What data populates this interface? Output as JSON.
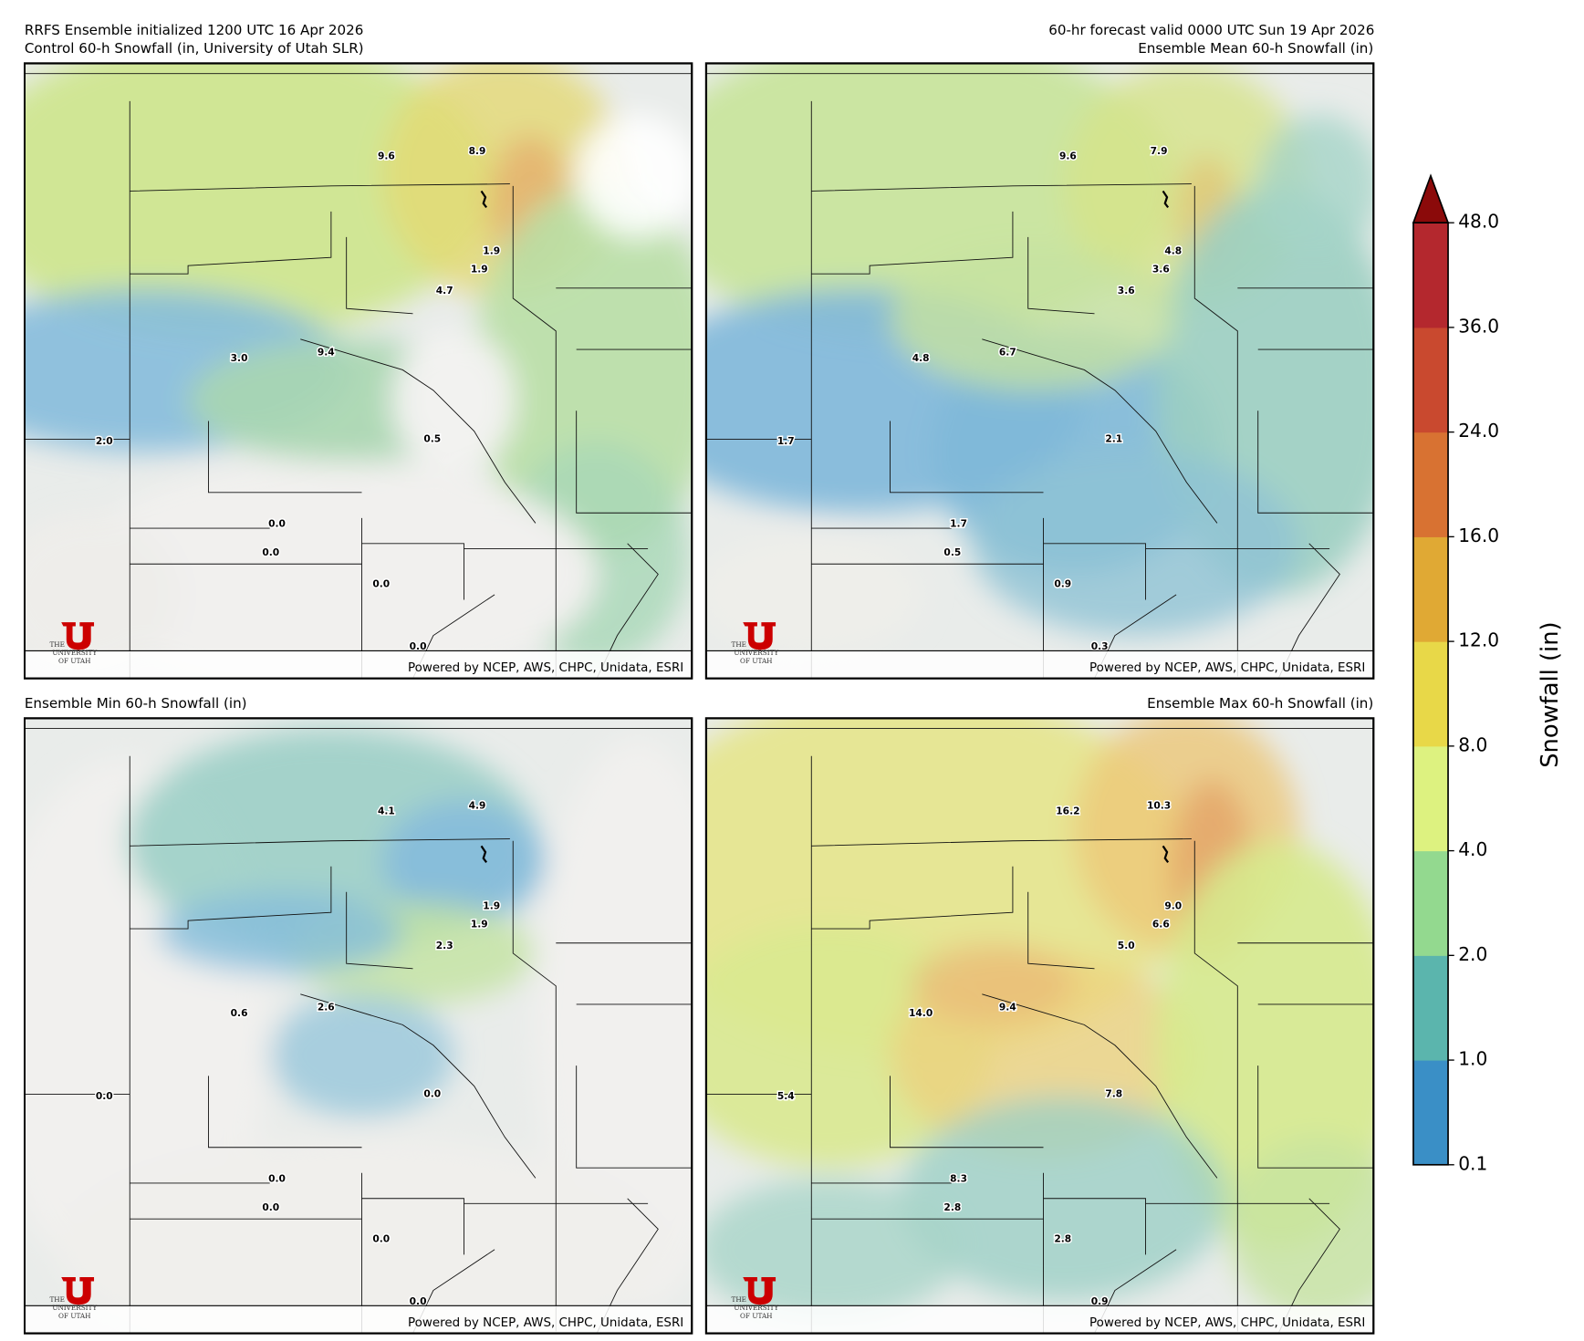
{
  "header": {
    "run": "RRFS Ensemble initialized 1200 UTC 16 Apr 2026",
    "valid": "60-hr forecast valid 0000 UTC Sun 19 Apr 2026"
  },
  "panels": [
    {
      "title": "Control 60-h Snowfall (in, University of Utah SLR)",
      "labels": [
        "9.6",
        "8.9",
        "1.9",
        "1.9",
        "4.7",
        "3.0",
        "9.4",
        "0.5",
        "2.0",
        "0.0",
        "0.0",
        "0.0",
        "0.0"
      ],
      "credit": "Powered by NCEP, AWS, CHPC, Unidata, ESRI",
      "logo": [
        "THE",
        "UNIVERSITY",
        "OF UTAH"
      ]
    },
    {
      "title": "Ensemble Mean 60-h Snowfall (in)",
      "labels": [
        "9.6",
        "7.9",
        "4.8",
        "3.6",
        "3.6",
        "4.8",
        "6.7",
        "2.1",
        "1.7",
        "1.7",
        "0.5",
        "0.9",
        "0.3"
      ],
      "credit": "Powered by NCEP, AWS, CHPC, Unidata, ESRI",
      "logo": [
        "THE",
        "UNIVERSITY",
        "OF UTAH"
      ]
    },
    {
      "title": "Ensemble Min 60-h Snowfall (in)",
      "labels": [
        "4.1",
        "4.9",
        "1.9",
        "1.9",
        "2.3",
        "0.6",
        "2.6",
        "0.0",
        "0.0",
        "0.0",
        "0.0",
        "0.0",
        "0.0"
      ],
      "credit": "Powered by NCEP, AWS, CHPC, Unidata, ESRI",
      "logo": [
        "THE",
        "UNIVERSITY",
        "OF UTAH"
      ]
    },
    {
      "title": "Ensemble Max 60-h Snowfall (in)",
      "labels": [
        "16.2",
        "10.3",
        "9.0",
        "6.6",
        "5.0",
        "14.0",
        "9.4",
        "7.8",
        "5.4",
        "8.3",
        "2.8",
        "2.8",
        "0.9"
      ],
      "credit": "Powered by NCEP, AWS, CHPC, Unidata, ESRI",
      "logo": [
        "THE",
        "UNIVERSITY",
        "OF UTAH"
      ]
    }
  ],
  "colorbar": {
    "label": "Snowfall (in)",
    "ticks": [
      "0.1",
      "1.0",
      "2.0",
      "4.0",
      "8.0",
      "12.0",
      "16.0",
      "24.0",
      "36.0",
      "48.0"
    ],
    "colors": [
      "#3a8fc6",
      "#5bb5ad",
      "#93d98f",
      "#ddf280",
      "#e8d848",
      "#e0a934",
      "#d87232",
      "#c9492f",
      "#b4282e"
    ],
    "extend_color": "#8b0a0a"
  }
}
